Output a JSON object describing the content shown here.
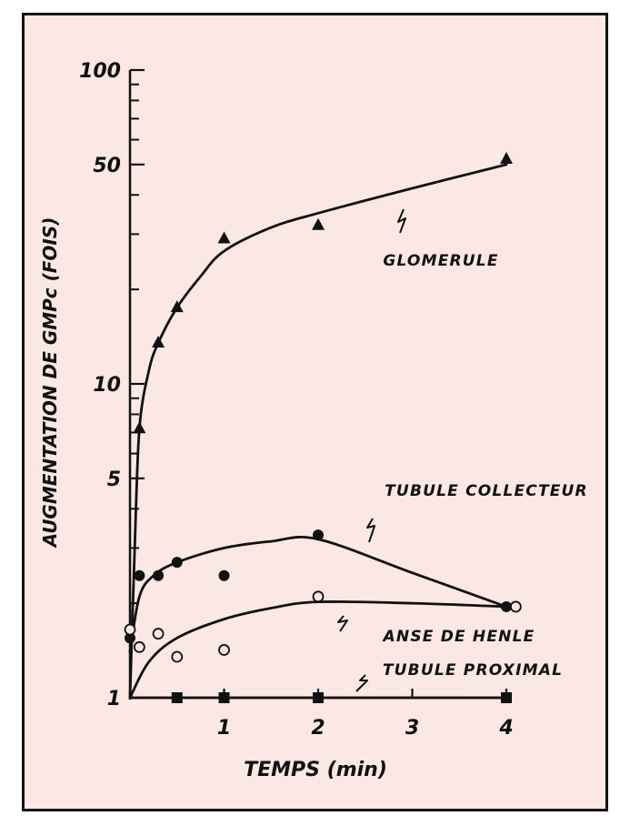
{
  "chart_data": {
    "type": "line",
    "title": "",
    "xlabel": "TEMPS (min)",
    "ylabel": "AUGMENTATION DE GMPc (FOIS)",
    "xlim": [
      0,
      4
    ],
    "ylim": [
      1,
      100
    ],
    "yscale": "log",
    "grid": false,
    "x_ticks": [
      "1",
      "2",
      "3",
      "4"
    ],
    "y_ticks": [
      "1",
      "5",
      "10",
      "50",
      "100"
    ],
    "series": [
      {
        "name": "GLOMERULE",
        "marker": "filled-triangle",
        "points": [
          {
            "x": 0.1,
            "y": 7.2
          },
          {
            "x": 0.3,
            "y": 13.5
          },
          {
            "x": 0.5,
            "y": 17.5
          },
          {
            "x": 1,
            "y": 29
          },
          {
            "x": 2,
            "y": 32
          },
          {
            "x": 4,
            "y": 52
          }
        ],
        "curve": [
          {
            "x": 0,
            "y": 1
          },
          {
            "x": 0.05,
            "y": 3
          },
          {
            "x": 0.1,
            "y": 7.2
          },
          {
            "x": 0.2,
            "y": 11
          },
          {
            "x": 0.3,
            "y": 13.5
          },
          {
            "x": 0.5,
            "y": 17.5
          },
          {
            "x": 0.75,
            "y": 22
          },
          {
            "x": 1,
            "y": 26.5
          },
          {
            "x": 1.5,
            "y": 31.5
          },
          {
            "x": 2,
            "y": 35
          },
          {
            "x": 3,
            "y": 42
          },
          {
            "x": 4,
            "y": 50
          }
        ]
      },
      {
        "name": "TUBULE COLLECTEUR",
        "marker": "filled-circle",
        "points": [
          {
            "x": 0,
            "y": 1.55
          },
          {
            "x": 0.1,
            "y": 2.45
          },
          {
            "x": 0.3,
            "y": 2.45
          },
          {
            "x": 0.5,
            "y": 2.7
          },
          {
            "x": 1,
            "y": 2.45
          },
          {
            "x": 2,
            "y": 3.3
          },
          {
            "x": 4,
            "y": 1.95
          }
        ],
        "curve": [
          {
            "x": 0,
            "y": 1.4
          },
          {
            "x": 0.1,
            "y": 2.1
          },
          {
            "x": 0.25,
            "y": 2.45
          },
          {
            "x": 0.5,
            "y": 2.7
          },
          {
            "x": 1,
            "y": 3
          },
          {
            "x": 1.5,
            "y": 3.15
          },
          {
            "x": 2,
            "y": 3.2
          },
          {
            "x": 3,
            "y": 2.5
          },
          {
            "x": 4,
            "y": 1.95
          }
        ]
      },
      {
        "name": "ANSE DE HENLE",
        "marker": "open-circle",
        "points": [
          {
            "x": 0,
            "y": 1.65
          },
          {
            "x": 0.1,
            "y": 1.45
          },
          {
            "x": 0.3,
            "y": 1.6
          },
          {
            "x": 0.5,
            "y": 1.35
          },
          {
            "x": 1,
            "y": 1.42
          },
          {
            "x": 2,
            "y": 2.1
          },
          {
            "x": 4.1,
            "y": 1.95
          }
        ],
        "curve": [
          {
            "x": 0,
            "y": 1
          },
          {
            "x": 0.2,
            "y": 1.3
          },
          {
            "x": 0.5,
            "y": 1.55
          },
          {
            "x": 1,
            "y": 1.78
          },
          {
            "x": 1.5,
            "y": 1.93
          },
          {
            "x": 2,
            "y": 2.02
          },
          {
            "x": 3,
            "y": 2
          },
          {
            "x": 4,
            "y": 1.95
          }
        ]
      },
      {
        "name": "TUBULE PROXIMAL",
        "marker": "filled-square",
        "points": [
          {
            "x": 0.5,
            "y": 1
          },
          {
            "x": 1,
            "y": 1
          },
          {
            "x": 2,
            "y": 1
          },
          {
            "x": 4,
            "y": 1
          }
        ],
        "curve": [
          {
            "x": 0,
            "y": 1
          },
          {
            "x": 4,
            "y": 1
          }
        ]
      }
    ]
  },
  "colors": {
    "background": "#fbe7e3",
    "ink": "#111111",
    "frame": "#141414"
  }
}
